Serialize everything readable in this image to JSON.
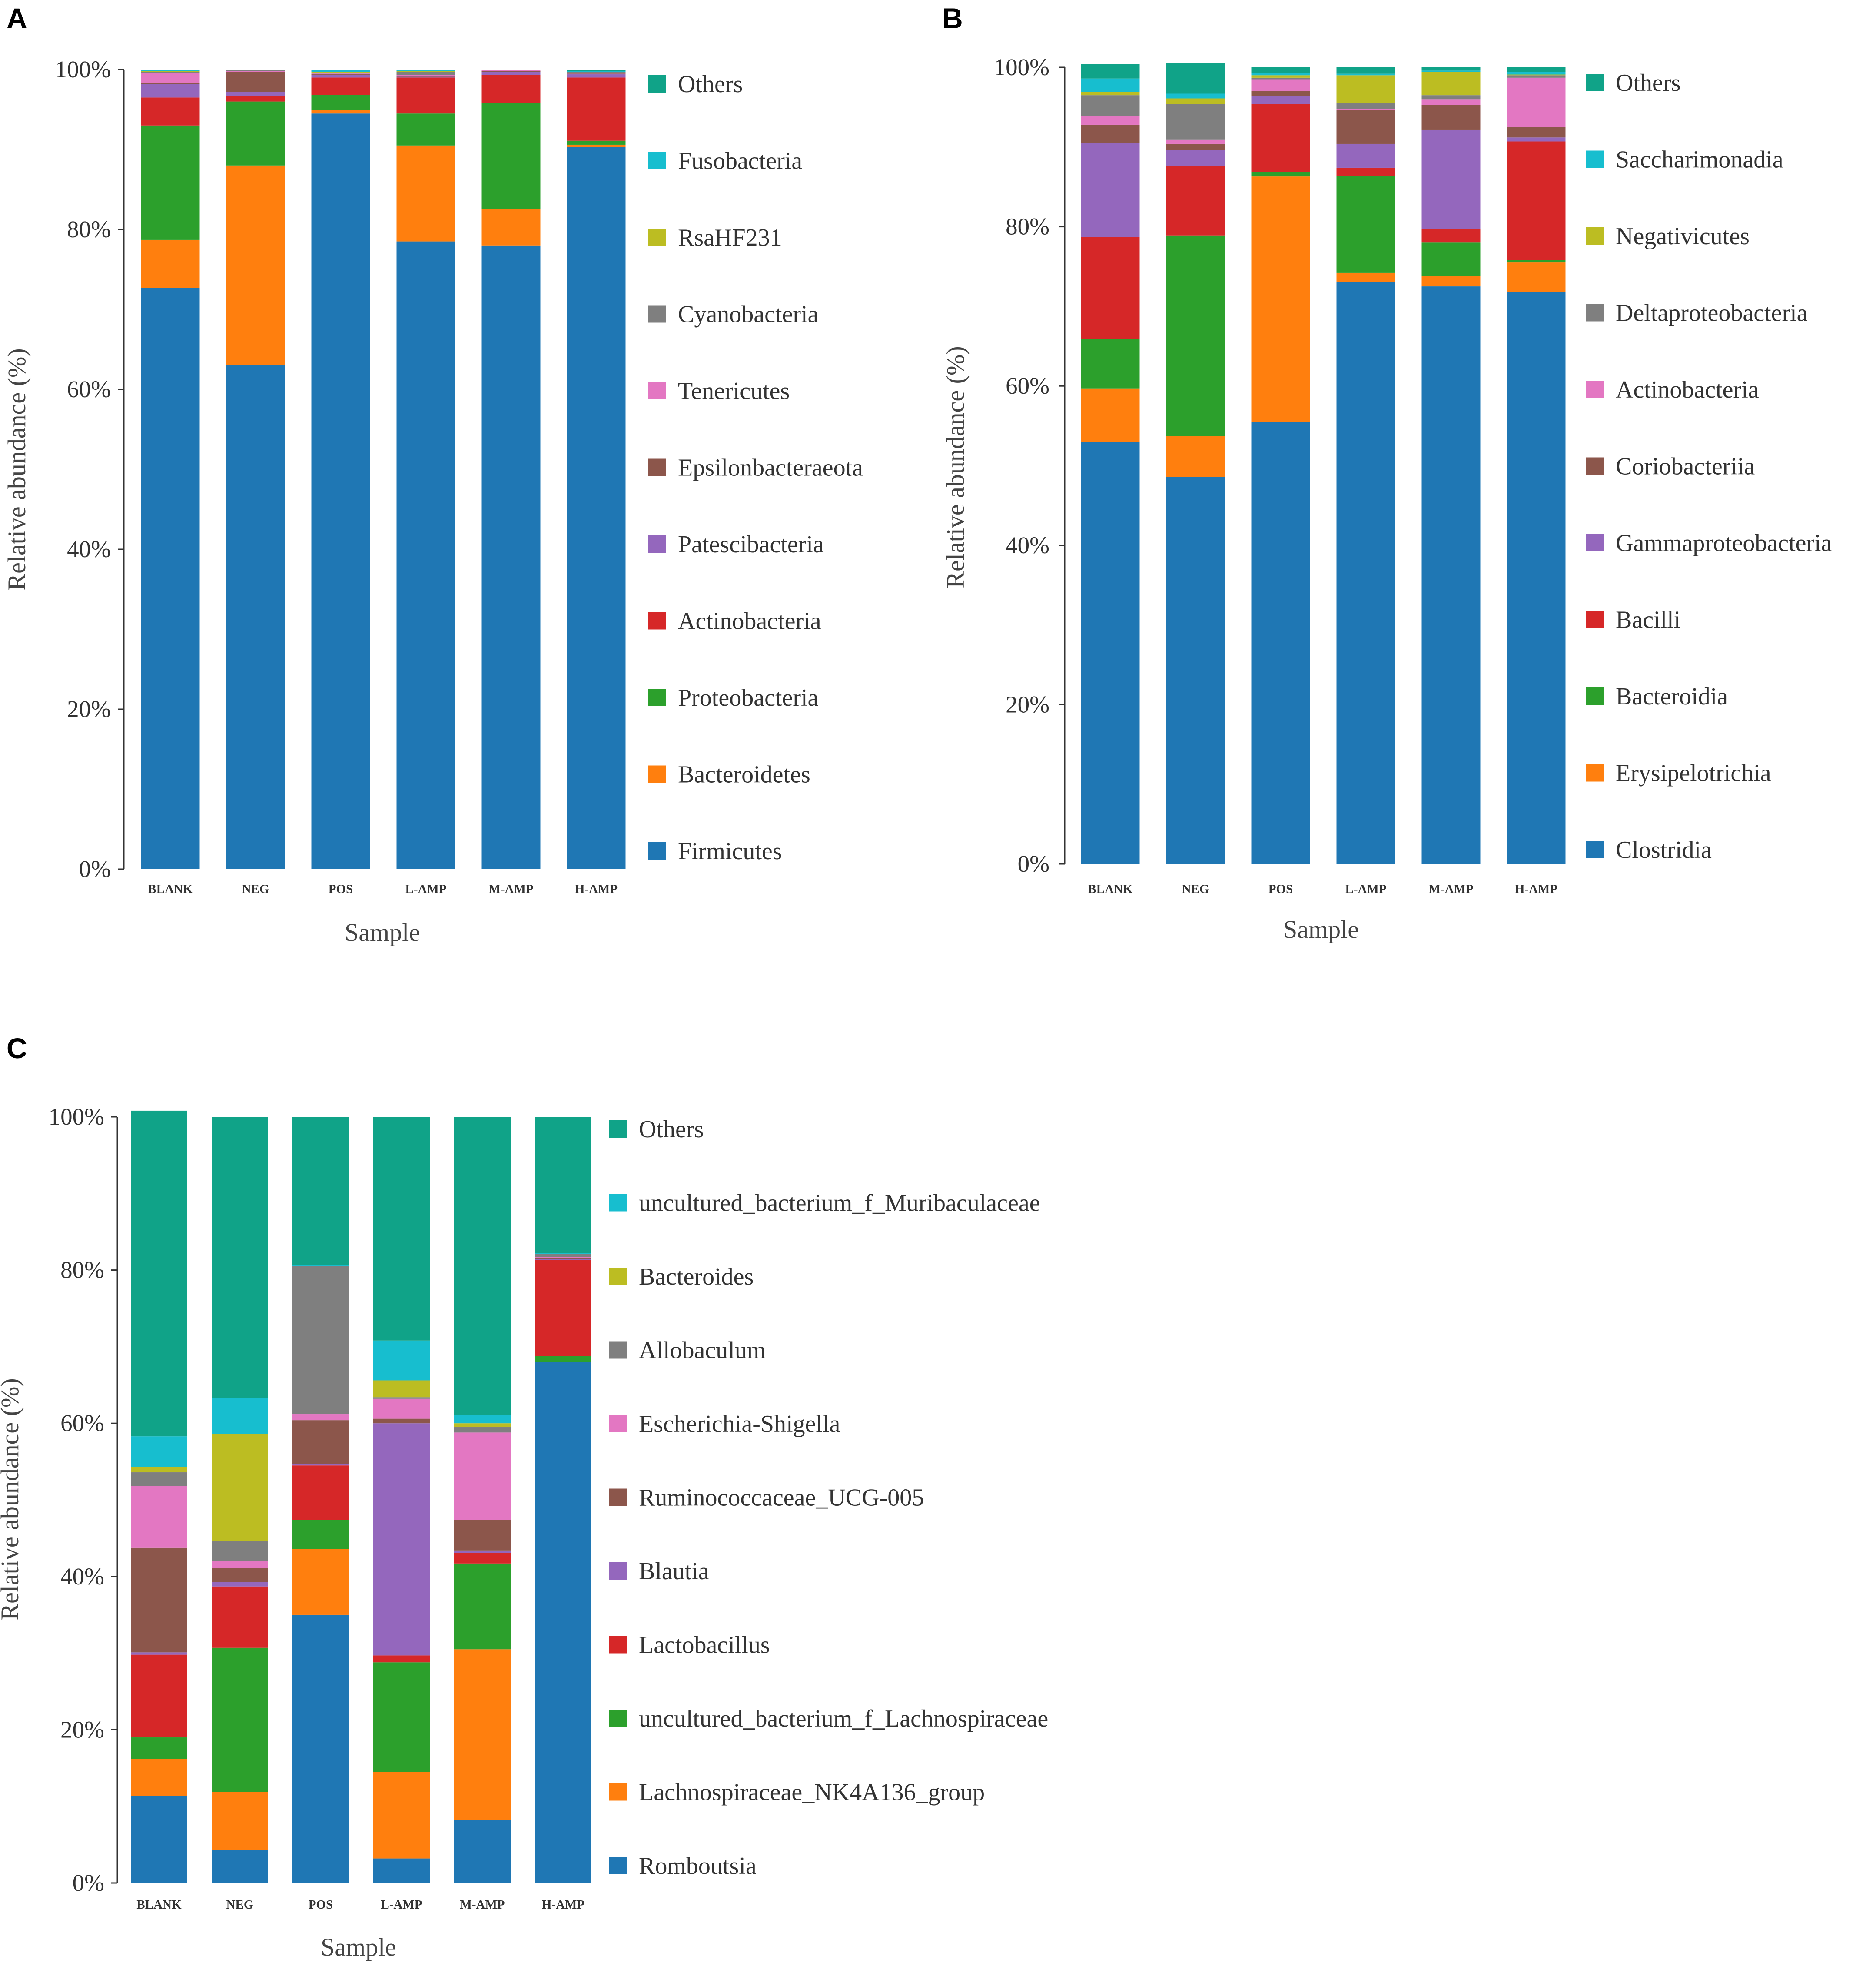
{
  "colors": {
    "blue": "#1f77b4",
    "orange": "#ff7f0e",
    "green": "#2ca02c",
    "red": "#d62728",
    "purple": "#9467bd",
    "brown": "#8c564b",
    "pink": "#e377c2",
    "gray": "#7f7f7f",
    "olive": "#bcbd22",
    "cyan": "#17becf",
    "teal": "#10a388"
  },
  "chart_data": [
    {
      "panel": "A",
      "type": "bar",
      "stacked": true,
      "xlabel": "Sample",
      "ylabel": "Relative abundance (%)",
      "ylim": [
        0,
        100
      ],
      "yticks": [
        "0%",
        "20%",
        "40%",
        "60%",
        "80%",
        "100%"
      ],
      "categories": [
        "BLANK",
        "NEG",
        "POS",
        "L-AMP",
        "M-AMP",
        "H-AMP"
      ],
      "series": [
        {
          "name": "Firmicutes",
          "color": "#1f77b4",
          "values": [
            72.7,
            63.0,
            94.5,
            78.5,
            78.0,
            90.3
          ]
        },
        {
          "name": "Bacteroidetes",
          "color": "#ff7f0e",
          "values": [
            6.0,
            25.0,
            0.5,
            12.0,
            4.5,
            0.3
          ]
        },
        {
          "name": "Proteobacteria",
          "color": "#2ca02c",
          "values": [
            14.3,
            8.0,
            1.8,
            4.0,
            13.3,
            0.5
          ]
        },
        {
          "name": "Actinobacteria",
          "color": "#d62728",
          "values": [
            3.5,
            0.7,
            2.2,
            4.5,
            3.5,
            7.9
          ]
        },
        {
          "name": "Patescibacteria",
          "color": "#9467bd",
          "values": [
            1.7,
            0.5,
            0.3,
            0.1,
            0.4,
            0.4
          ]
        },
        {
          "name": "Epsilonbacteraeota",
          "color": "#8c564b",
          "values": [
            0.1,
            2.5,
            0.1,
            0.1,
            0.1,
            0.1
          ]
        },
        {
          "name": "Tenericutes",
          "color": "#e377c2",
          "values": [
            1.3,
            0.1,
            0.1,
            0.1,
            0.1,
            0.1
          ]
        },
        {
          "name": "Cyanobacteria",
          "color": "#7f7f7f",
          "values": [
            0.1,
            0.1,
            0.1,
            0.4,
            0.1,
            0.1
          ]
        },
        {
          "name": "RsaHF231",
          "color": "#bcbd22",
          "values": [
            0.1,
            0.0,
            0.1,
            0.1,
            0.0,
            0.0
          ]
        },
        {
          "name": "Fusobacteria",
          "color": "#17becf",
          "values": [
            0.1,
            0.0,
            0.2,
            0.1,
            0.0,
            0.1
          ]
        },
        {
          "name": "Others",
          "color": "#10a388",
          "values": [
            0.1,
            0.1,
            0.1,
            0.1,
            0.0,
            0.2
          ]
        }
      ]
    },
    {
      "panel": "B",
      "type": "bar",
      "stacked": true,
      "xlabel": "Sample",
      "ylabel": "Relative abundance (%)",
      "ylim": [
        0,
        100
      ],
      "yticks": [
        "0%",
        "20%",
        "40%",
        "60%",
        "80%",
        "100%"
      ],
      "categories": [
        "BLANK",
        "NEG",
        "POS",
        "L-AMP",
        "M-AMP",
        "H-AMP"
      ],
      "series": [
        {
          "name": "Clostridia",
          "color": "#1f77b4",
          "values": [
            53.0,
            48.6,
            55.5,
            73.0,
            72.5,
            71.8
          ]
        },
        {
          "name": "Erysipelotrichia",
          "color": "#ff7f0e",
          "values": [
            6.7,
            5.1,
            30.8,
            1.2,
            1.3,
            3.7
          ]
        },
        {
          "name": "Bacteroidia",
          "color": "#2ca02c",
          "values": [
            6.2,
            25.2,
            0.6,
            12.2,
            4.2,
            0.3
          ]
        },
        {
          "name": "Bacilli",
          "color": "#d62728",
          "values": [
            12.8,
            8.7,
            8.5,
            1.0,
            1.7,
            14.9
          ]
        },
        {
          "name": "Gammaproteobacteria",
          "color": "#9467bd",
          "values": [
            11.8,
            2.0,
            1.0,
            3.0,
            12.5,
            0.5
          ]
        },
        {
          "name": "Coriobacteriia",
          "color": "#8c564b",
          "values": [
            2.3,
            0.8,
            0.6,
            4.2,
            3.1,
            1.3
          ]
        },
        {
          "name": "Actinobacteria",
          "color": "#e377c2",
          "values": [
            1.1,
            0.5,
            1.5,
            0.2,
            0.7,
            6.2
          ]
        },
        {
          "name": "Deltaproteobacteria",
          "color": "#7f7f7f",
          "values": [
            2.6,
            4.5,
            0.2,
            0.7,
            0.5,
            0.3
          ]
        },
        {
          "name": "Negativicutes",
          "color": "#bcbd22",
          "values": [
            0.4,
            0.7,
            0.3,
            3.5,
            2.9,
            0.1
          ]
        },
        {
          "name": "Saccharimonadia",
          "color": "#17becf",
          "values": [
            1.7,
            0.6,
            0.3,
            0.2,
            0.2,
            0.3
          ]
        },
        {
          "name": "Others",
          "color": "#10a388",
          "values": [
            1.8,
            3.9,
            0.7,
            0.8,
            0.4,
            0.6
          ]
        }
      ]
    },
    {
      "panel": "C",
      "type": "bar",
      "stacked": true,
      "xlabel": "Sample",
      "ylabel": "Relative abundance (%)",
      "ylim": [
        0,
        100
      ],
      "yticks": [
        "0%",
        "20%",
        "40%",
        "60%",
        "80%",
        "100%"
      ],
      "categories": [
        "BLANK",
        "NEG",
        "POS",
        "L-AMP",
        "M-AMP",
        "H-AMP"
      ],
      "series": [
        {
          "name": "Romboutsia",
          "color": "#1f77b4",
          "values": [
            11.4,
            4.3,
            35.0,
            3.2,
            8.2,
            68.0
          ]
        },
        {
          "name": "Lachnospiraceae_NK4A136_group",
          "color": "#ff7f0e",
          "values": [
            4.8,
            7.6,
            8.6,
            11.3,
            22.3,
            0.0
          ]
        },
        {
          "name": "uncultured_bacterium_f_Lachnospiraceae",
          "color": "#2ca02c",
          "values": [
            2.8,
            18.8,
            3.8,
            14.3,
            11.2,
            0.8
          ]
        },
        {
          "name": "Lactobacillus",
          "color": "#d62728",
          "values": [
            10.8,
            8.0,
            7.1,
            0.9,
            1.4,
            12.5
          ]
        },
        {
          "name": "Blautia",
          "color": "#9467bd",
          "values": [
            0.3,
            0.6,
            0.2,
            30.3,
            0.3,
            0.1
          ]
        },
        {
          "name": "Ruminococcaceae_UCG-005",
          "color": "#8c564b",
          "values": [
            13.7,
            1.8,
            5.7,
            0.6,
            4.0,
            0.2
          ]
        },
        {
          "name": "Escherichia-Shigella",
          "color": "#e377c2",
          "values": [
            8.0,
            0.9,
            0.8,
            2.6,
            11.4,
            0.1
          ]
        },
        {
          "name": "Allobaculum",
          "color": "#7f7f7f",
          "values": [
            1.8,
            2.6,
            19.3,
            0.2,
            0.7,
            0.4
          ]
        },
        {
          "name": "Bacteroides",
          "color": "#bcbd22",
          "values": [
            0.7,
            14.0,
            0.0,
            2.2,
            0.5,
            0.0
          ]
        },
        {
          "name": "uncultured_bacterium_f_Muribaculaceae",
          "color": "#17becf",
          "values": [
            4.0,
            4.7,
            0.2,
            5.2,
            1.1,
            0.1
          ]
        },
        {
          "name": "Others",
          "color": "#10a388",
          "values": [
            42.5,
            36.7,
            19.3,
            29.2,
            38.9,
            17.8
          ]
        }
      ]
    }
  ]
}
